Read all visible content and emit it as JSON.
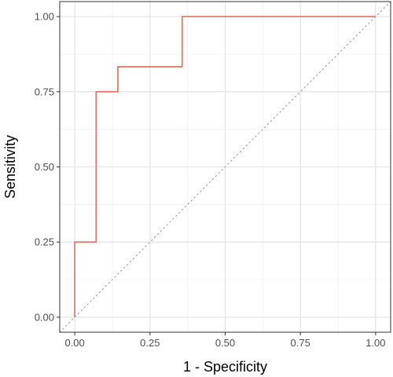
{
  "chart_data": {
    "type": "line",
    "title": "",
    "xlabel": "1 - Specificity",
    "ylabel": "Sensitivity",
    "xlim": [
      -0.05,
      1.05
    ],
    "ylim": [
      -0.05,
      1.05
    ],
    "x_ticks": [
      0,
      0.25,
      0.5,
      0.75,
      1
    ],
    "x_tick_labels": [
      "0.00",
      "0.25",
      "0.50",
      "0.75",
      "1.00"
    ],
    "y_ticks": [
      0,
      0.25,
      0.5,
      0.75,
      1
    ],
    "y_tick_labels": [
      "0.00",
      "0.25",
      "0.50",
      "0.75",
      "1.00"
    ],
    "grid": true,
    "legend": "none",
    "series": [
      {
        "style": "step",
        "color": "#E07B6F",
        "x": [
          0,
          0,
          0.071,
          0.071,
          0.143,
          0.143,
          0.357,
          0.357,
          1.0
        ],
        "y": [
          0,
          0.25,
          0.25,
          0.75,
          0.75,
          0.833,
          0.833,
          1.0,
          1.0
        ]
      }
    ],
    "reference_line": {
      "style": "dotted",
      "color": "#a6a6a6",
      "x": [
        -0.05,
        1.05
      ],
      "y": [
        -0.05,
        1.05
      ]
    }
  }
}
